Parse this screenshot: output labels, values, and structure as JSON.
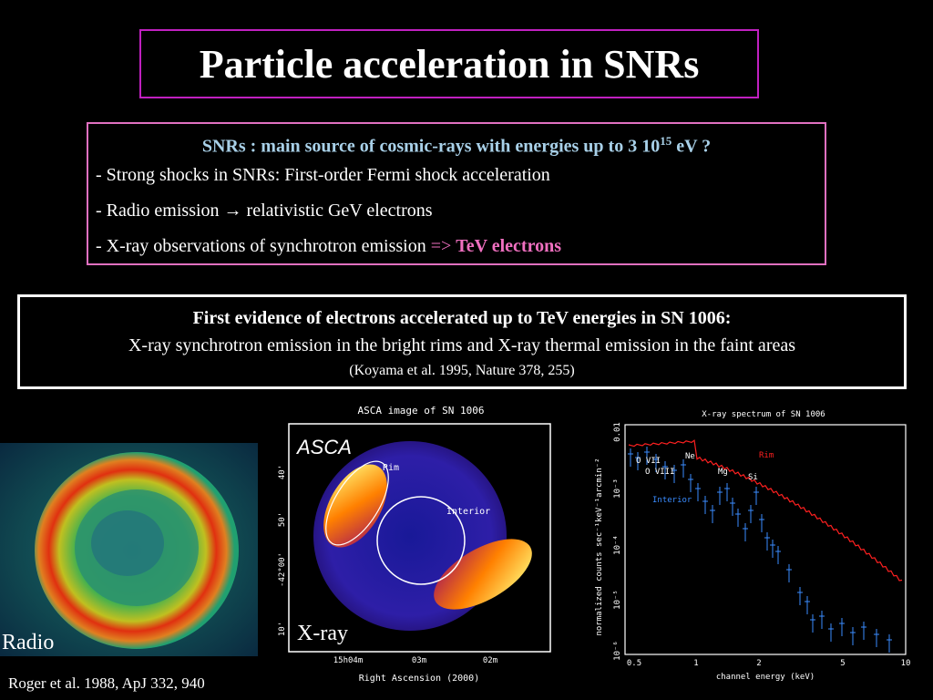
{
  "title": "Particle acceleration in SNRs",
  "snr_box": {
    "heading_pre": "SNRs : main source of cosmic-rays with energies up to 3 10",
    "heading_exp": "15",
    "heading_post": " eV ?",
    "bullet1": "- Strong shocks in SNRs: First-order Fermi shock acceleration",
    "bullet2": "- Radio emission → relativistic GeV electrons",
    "bullet3_pre": "- X-ray observations of synchrotron emission ",
    "bullet3_arrow": "=>",
    "bullet3_hl": "TeV electrons"
  },
  "evidence_box": {
    "line1": "First evidence of electrons accelerated up to TeV energies in SN 1006:",
    "line2": "X-ray synchrotron emission in the bright rims  and X-ray thermal emission in the faint areas",
    "line3": "(Koyama et al. 1995, Nature 378, 255)"
  },
  "radio": {
    "label": "Radio",
    "citation": "Roger et al. 1988, ApJ 332, 940"
  },
  "asca": {
    "title": "ASCA image of SN 1006",
    "badge": "ASCA",
    "label": "X-ray",
    "rim": "Rim",
    "interior": "Interior",
    "y_ticks": [
      "40'",
      "50'",
      "-42°00'",
      "10'"
    ],
    "x_ticks": [
      "15h04m",
      "03m",
      "02m"
    ],
    "xlabel": "Right Ascension (2000)"
  },
  "spectrum": {
    "title": "X-ray spectrum of SN 1006",
    "xlabel": "channel energy (keV)",
    "ylabel": "normalized counts sec⁻¹keV⁻¹arcmin⁻²",
    "x_ticks": [
      "0.5",
      "1",
      "2",
      "5",
      "10"
    ],
    "y_ticks": [
      "0.01",
      "10⁻³",
      "10⁻⁴",
      "10⁻⁵",
      "10⁻⁶"
    ],
    "labels": {
      "ovii": "O VII",
      "oviii": "O VIII",
      "ne": "Ne",
      "mg": "Mg",
      "si": "Si",
      "rim": "Rim",
      "interior": "Interior"
    },
    "colors": {
      "rim": "#ff2020",
      "interior": "#3a8cff"
    }
  }
}
